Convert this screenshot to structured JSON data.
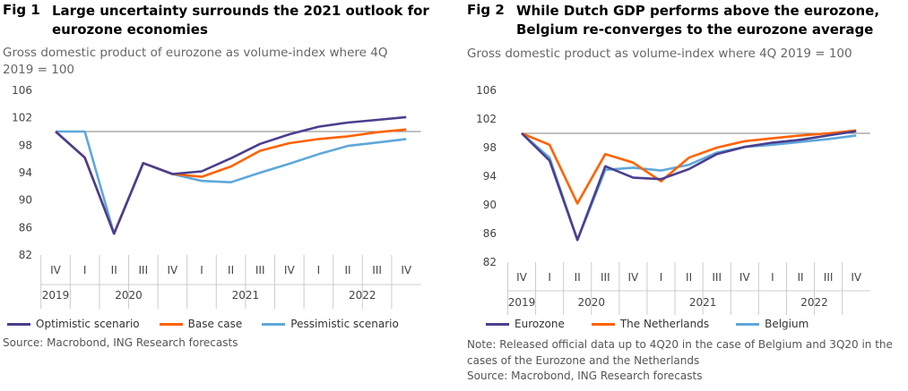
{
  "chart_data": [
    {
      "type": "line",
      "fig_number": "Fig 1",
      "title": "Large uncertainty surrounds the 2021 outlook for eurozone economies",
      "subtitle": "Gross domestic product of eurozone as volume-index where 4Q 2019 = 100",
      "quarters": [
        "IV",
        "I",
        "II",
        "III",
        "IV",
        "I",
        "II",
        "III",
        "IV",
        "I",
        "II",
        "III",
        "IV"
      ],
      "years": [
        "2019",
        "2020",
        "2021",
        "2022"
      ],
      "y_ticks": [
        "106",
        "102",
        "98",
        "94",
        "90",
        "86",
        "82"
      ],
      "ylim": [
        82,
        106
      ],
      "reference_line": 100,
      "series": [
        {
          "name": "Optimistic scenario",
          "color": "#4a3f8f",
          "values": [
            100,
            96.2,
            85.1,
            95.4,
            93.8,
            94.2,
            96.1,
            98.2,
            99.6,
            100.7,
            101.3,
            101.7,
            102.1
          ]
        },
        {
          "name": "Base case",
          "color": "#ff6200",
          "values": [
            100,
            96.2,
            85.1,
            95.4,
            93.8,
            93.4,
            94.9,
            97.2,
            98.3,
            98.9,
            99.3,
            99.9,
            100.3
          ]
        },
        {
          "name": "Pessimistic scenario",
          "color": "#5ea8da",
          "values": [
            100,
            100,
            85.1,
            95.4,
            93.8,
            92.8,
            92.6,
            94.0,
            95.3,
            96.7,
            97.9,
            98.4,
            98.9
          ]
        }
      ],
      "source": "Source: Macrobond, ING Research forecasts"
    },
    {
      "type": "line",
      "fig_number": "Fig 2",
      "title": "While Dutch GDP performs above the eurozone, Belgium re-converges to the eurozone average",
      "subtitle": "Gross domestic product as volume-index where 4Q 2019 = 100",
      "quarters": [
        "IV",
        "I",
        "II",
        "III",
        "IV",
        "I",
        "II",
        "III",
        "IV",
        "I",
        "II",
        "III",
        "IV"
      ],
      "years": [
        "2019",
        "2020",
        "2021",
        "2022"
      ],
      "y_ticks": [
        "106",
        "102",
        "98",
        "94",
        "90",
        "86",
        "82"
      ],
      "ylim": [
        82,
        106
      ],
      "reference_line": 100,
      "series": [
        {
          "name": "Eurozone",
          "color": "#4a3f8f",
          "values": [
            100,
            96.2,
            85.1,
            95.4,
            93.8,
            93.6,
            95.0,
            97.1,
            98.1,
            98.7,
            99.1,
            99.7,
            100.3
          ]
        },
        {
          "name": "The Netherlands",
          "color": "#ff6200",
          "values": [
            100,
            98.4,
            90.2,
            97.1,
            95.9,
            93.3,
            96.6,
            98.0,
            98.9,
            99.3,
            99.7,
            100.0,
            100.4
          ]
        },
        {
          "name": "Belgium",
          "color": "#5ea8da",
          "values": [
            100,
            96.6,
            85.1,
            94.9,
            95.2,
            94.8,
            95.6,
            97.3,
            98.1,
            98.4,
            98.8,
            99.2,
            99.7
          ]
        }
      ],
      "note": "Note: Released official data up to 4Q20 in the case of Belgium and 3Q20 in the cases of the Eurozone and the Netherlands",
      "source": "Source: Macrobond, ING Research forecasts"
    }
  ]
}
